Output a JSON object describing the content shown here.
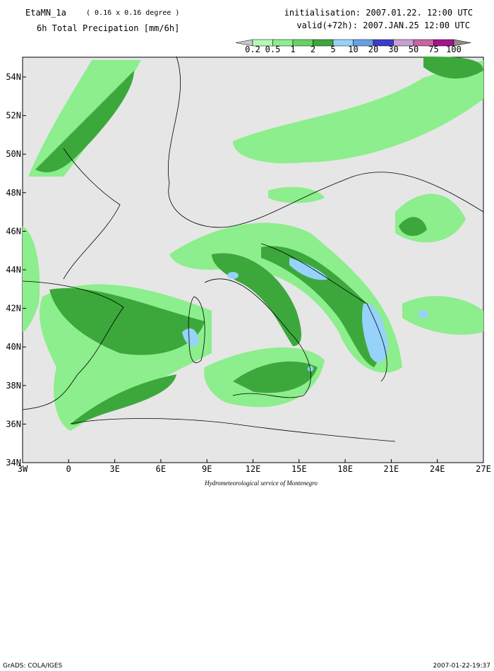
{
  "header": {
    "model": "EtaMN_1a",
    "resolution": "( 0.16 x 0.16 degree )",
    "field": "6h Total Precipation [mm/6h]",
    "initialisation": "initialisation: 2007.01.22.  12:00 UTC",
    "valid": "valid(+72h): 2007.JAN.25 12:00 UTC"
  },
  "legend": {
    "levels": [
      "0.2",
      "0.5",
      "1",
      "2",
      "5",
      "10",
      "20",
      "30",
      "50",
      "75",
      "100"
    ],
    "colors": [
      "#b4fab4",
      "#8cee8c",
      "#64d264",
      "#3ca83c",
      "#96d2fa",
      "#64a0e6",
      "#3c3cc8",
      "#c8a0d2",
      "#c864a0",
      "#a0148c"
    ],
    "below_color": "#c8c8c8",
    "above_color": "#8c8c8c"
  },
  "map": {
    "lat_labels": [
      "54N",
      "52N",
      "50N",
      "48N",
      "46N",
      "44N",
      "42N",
      "40N",
      "38N",
      "36N",
      "34N"
    ],
    "lon_labels": [
      "3W",
      "0",
      "3E",
      "6E",
      "9E",
      "12E",
      "15E",
      "18E",
      "21E",
      "24E",
      "27E"
    ],
    "credit": "Hydrometeorological service of Montenegro"
  },
  "footer": {
    "left": "GrADS: COLA/IGES",
    "right": "2007-01-22-19:37"
  }
}
